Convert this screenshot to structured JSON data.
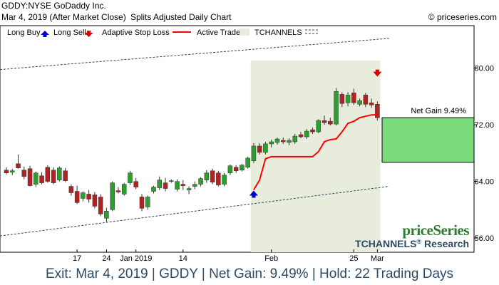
{
  "header": {
    "symbol_line": "GDDY:NYSE GoDaddy Inc.",
    "date_line": "Mar 4, 2019 (After Market Close)",
    "chart_kind": "Splits Adjusted Daily Chart",
    "copyright": "© priceseries.com"
  },
  "legend": {
    "long_buy": "Long Buy",
    "long_sell": "Long Sell",
    "adaptive_stop": "Adaptive Stop Loss",
    "active_trade": "Active Trade",
    "tchannels": "TCHANNELS"
  },
  "watermark": {
    "brand": "priceSeries",
    "product": "TCHANNELS",
    "reg": "®",
    "research": " Research"
  },
  "trade": {
    "net_gain_label": "Net Gain 9.49%",
    "entry_price": 66.7,
    "exit_price": 73.0
  },
  "footer": {
    "text": "Exit: Mar 4, 2019 | GDDY | Net Gain: 9.49% | Hold: 22 Trading Days"
  },
  "colors": {
    "up_candle": "#2ca02c",
    "down_candle": "#b22222",
    "stop_line": "#ff0000",
    "active_trade_bg": "#e8ecdc",
    "channel": "#2e4a62",
    "gain_box": "#7bdc7b",
    "buy_arrow": "#0000cc",
    "sell_arrow": "#dd0000"
  },
  "chart_data": {
    "type": "candlestick",
    "ylim": [
      54,
      86
    ],
    "y_ticks": [
      56.0,
      64.0,
      72.0,
      80.0
    ],
    "y_tick_labels": [
      "56.00",
      "64.00",
      "72.00",
      "80.00"
    ],
    "x_tick_labels": [
      {
        "index": 12,
        "label": "17"
      },
      {
        "index": 17,
        "label": "24"
      },
      {
        "index": 22,
        "label": "Jan 2019"
      },
      {
        "index": 30,
        "label": "14"
      },
      {
        "index": 45,
        "label": "Feb"
      },
      {
        "index": 59,
        "label": "25"
      },
      {
        "index": 63,
        "label": "Mar"
      }
    ],
    "candles": [
      {
        "o": 65.6,
        "h": 66.0,
        "l": 65.0,
        "c": 65.2
      },
      {
        "o": 65.3,
        "h": 65.8,
        "l": 64.9,
        "c": 65.5
      },
      {
        "o": 66.5,
        "h": 67.8,
        "l": 65.8,
        "c": 65.9
      },
      {
        "o": 65.6,
        "h": 66.1,
        "l": 64.3,
        "c": 64.7
      },
      {
        "o": 65.8,
        "h": 66.2,
        "l": 63.3,
        "c": 63.4
      },
      {
        "o": 63.6,
        "h": 65.4,
        "l": 63.2,
        "c": 65.2
      },
      {
        "o": 64.8,
        "h": 65.3,
        "l": 63.6,
        "c": 63.8
      },
      {
        "o": 66.0,
        "h": 66.3,
        "l": 63.8,
        "c": 64.0
      },
      {
        "o": 65.6,
        "h": 66.0,
        "l": 63.6,
        "c": 63.8
      },
      {
        "o": 64.2,
        "h": 66.1,
        "l": 64.0,
        "c": 65.9
      },
      {
        "o": 65.5,
        "h": 65.9,
        "l": 63.9,
        "c": 64.1
      },
      {
        "o": 63.3,
        "h": 63.6,
        "l": 62.0,
        "c": 62.4
      },
      {
        "o": 62.6,
        "h": 63.4,
        "l": 60.8,
        "c": 61.0
      },
      {
        "o": 61.6,
        "h": 62.6,
        "l": 61.2,
        "c": 62.4
      },
      {
        "o": 62.2,
        "h": 62.8,
        "l": 61.0,
        "c": 61.5
      },
      {
        "o": 62.1,
        "h": 62.5,
        "l": 60.2,
        "c": 60.5
      },
      {
        "o": 61.8,
        "h": 62.2,
        "l": 59.1,
        "c": 59.4
      },
      {
        "o": 58.8,
        "h": 60.3,
        "l": 58.2,
        "c": 59.8
      },
      {
        "o": 60.0,
        "h": 64.0,
        "l": 59.8,
        "c": 63.8
      },
      {
        "o": 62.7,
        "h": 63.2,
        "l": 62.3,
        "c": 62.5
      },
      {
        "o": 62.2,
        "h": 63.8,
        "l": 62.0,
        "c": 63.6
      },
      {
        "o": 63.8,
        "h": 65.5,
        "l": 63.5,
        "c": 65.2
      },
      {
        "o": 64.0,
        "h": 64.5,
        "l": 62.9,
        "c": 63.2
      },
      {
        "o": 61.8,
        "h": 62.2,
        "l": 59.8,
        "c": 60.2
      },
      {
        "o": 60.4,
        "h": 62.0,
        "l": 60.0,
        "c": 61.8
      },
      {
        "o": 62.6,
        "h": 63.4,
        "l": 62.3,
        "c": 63.2
      },
      {
        "o": 63.1,
        "h": 64.7,
        "l": 62.8,
        "c": 64.2
      },
      {
        "o": 63.8,
        "h": 64.5,
        "l": 62.6,
        "c": 63.0
      },
      {
        "o": 64.0,
        "h": 64.3,
        "l": 63.8,
        "c": 64.1
      },
      {
        "o": 62.9,
        "h": 64.3,
        "l": 62.6,
        "c": 64.0
      },
      {
        "o": 63.6,
        "h": 64.2,
        "l": 62.8,
        "c": 63.4
      },
      {
        "o": 62.8,
        "h": 63.3,
        "l": 62.2,
        "c": 63.0
      },
      {
        "o": 63.3,
        "h": 64.0,
        "l": 62.9,
        "c": 63.6
      },
      {
        "o": 63.6,
        "h": 64.6,
        "l": 63.3,
        "c": 64.4
      },
      {
        "o": 64.2,
        "h": 65.6,
        "l": 63.8,
        "c": 65.2
      },
      {
        "o": 65.5,
        "h": 65.8,
        "l": 63.6,
        "c": 63.9
      },
      {
        "o": 65.2,
        "h": 65.5,
        "l": 63.3,
        "c": 63.5
      },
      {
        "o": 63.6,
        "h": 65.2,
        "l": 63.3,
        "c": 64.9
      },
      {
        "o": 65.2,
        "h": 66.4,
        "l": 64.9,
        "c": 66.2
      },
      {
        "o": 66.0,
        "h": 66.3,
        "l": 65.2,
        "c": 65.5
      },
      {
        "o": 65.6,
        "h": 66.5,
        "l": 65.4,
        "c": 66.3
      },
      {
        "o": 66.0,
        "h": 67.5,
        "l": 65.8,
        "c": 67.3
      },
      {
        "o": 66.9,
        "h": 69.4,
        "l": 66.6,
        "c": 69.0
      },
      {
        "o": 69.0,
        "h": 69.4,
        "l": 67.8,
        "c": 68.1
      },
      {
        "o": 68.1,
        "h": 69.6,
        "l": 67.8,
        "c": 69.3
      },
      {
        "o": 69.3,
        "h": 69.9,
        "l": 68.8,
        "c": 69.6
      },
      {
        "o": 69.5,
        "h": 70.2,
        "l": 69.2,
        "c": 70.0
      },
      {
        "o": 69.8,
        "h": 70.2,
        "l": 69.3,
        "c": 69.6
      },
      {
        "o": 69.5,
        "h": 70.1,
        "l": 69.1,
        "c": 69.8
      },
      {
        "o": 69.6,
        "h": 70.7,
        "l": 69.3,
        "c": 70.4
      },
      {
        "o": 70.6,
        "h": 71.0,
        "l": 70.1,
        "c": 70.3
      },
      {
        "o": 70.3,
        "h": 71.4,
        "l": 70.0,
        "c": 71.1
      },
      {
        "o": 71.3,
        "h": 71.6,
        "l": 70.7,
        "c": 71.0
      },
      {
        "o": 71.0,
        "h": 72.8,
        "l": 70.8,
        "c": 72.6
      },
      {
        "o": 72.6,
        "h": 73.3,
        "l": 72.0,
        "c": 72.3
      },
      {
        "o": 72.5,
        "h": 73.0,
        "l": 71.9,
        "c": 72.1
      },
      {
        "o": 72.1,
        "h": 77.2,
        "l": 71.9,
        "c": 76.7
      },
      {
        "o": 76.3,
        "h": 76.6,
        "l": 74.5,
        "c": 75.0
      },
      {
        "o": 75.1,
        "h": 76.6,
        "l": 74.6,
        "c": 76.2
      },
      {
        "o": 76.5,
        "h": 77.1,
        "l": 74.8,
        "c": 75.1
      },
      {
        "o": 74.9,
        "h": 75.7,
        "l": 74.6,
        "c": 75.4
      },
      {
        "o": 76.2,
        "h": 76.5,
        "l": 74.5,
        "c": 74.9
      },
      {
        "o": 75.1,
        "h": 75.7,
        "l": 74.4,
        "c": 74.8
      },
      {
        "o": 74.9,
        "h": 75.3,
        "l": 72.6,
        "c": 73.0
      }
    ],
    "active_trade": {
      "start_index": 42,
      "end_index": 63
    },
    "stop_loss": [
      {
        "i": 42,
        "v": 62.8
      },
      {
        "i": 43,
        "v": 64.2
      },
      {
        "i": 44,
        "v": 67.2
      },
      {
        "i": 45,
        "v": 67.5
      },
      {
        "i": 52,
        "v": 67.5
      },
      {
        "i": 53,
        "v": 68.2
      },
      {
        "i": 54,
        "v": 69.6
      },
      {
        "i": 55,
        "v": 69.9
      },
      {
        "i": 56,
        "v": 70.0
      },
      {
        "i": 57,
        "v": 71.0
      },
      {
        "i": 58,
        "v": 72.2
      },
      {
        "i": 59,
        "v": 72.5
      },
      {
        "i": 60,
        "v": 73.0
      },
      {
        "i": 61,
        "v": 73.2
      },
      {
        "i": 62,
        "v": 73.4
      },
      {
        "i": 63,
        "v": 73.4
      }
    ],
    "channel_upper": {
      "start_index": 0,
      "start": 79.8,
      "end_index": 65,
      "end": 84.2
    },
    "channel_lower": {
      "start_index": 0,
      "start": 56.3,
      "end_index": 65,
      "end": 63.3
    },
    "buy_signal": {
      "index": 42,
      "price": 62.0
    },
    "sell_signal": {
      "index": 63,
      "price": 79.5
    }
  }
}
